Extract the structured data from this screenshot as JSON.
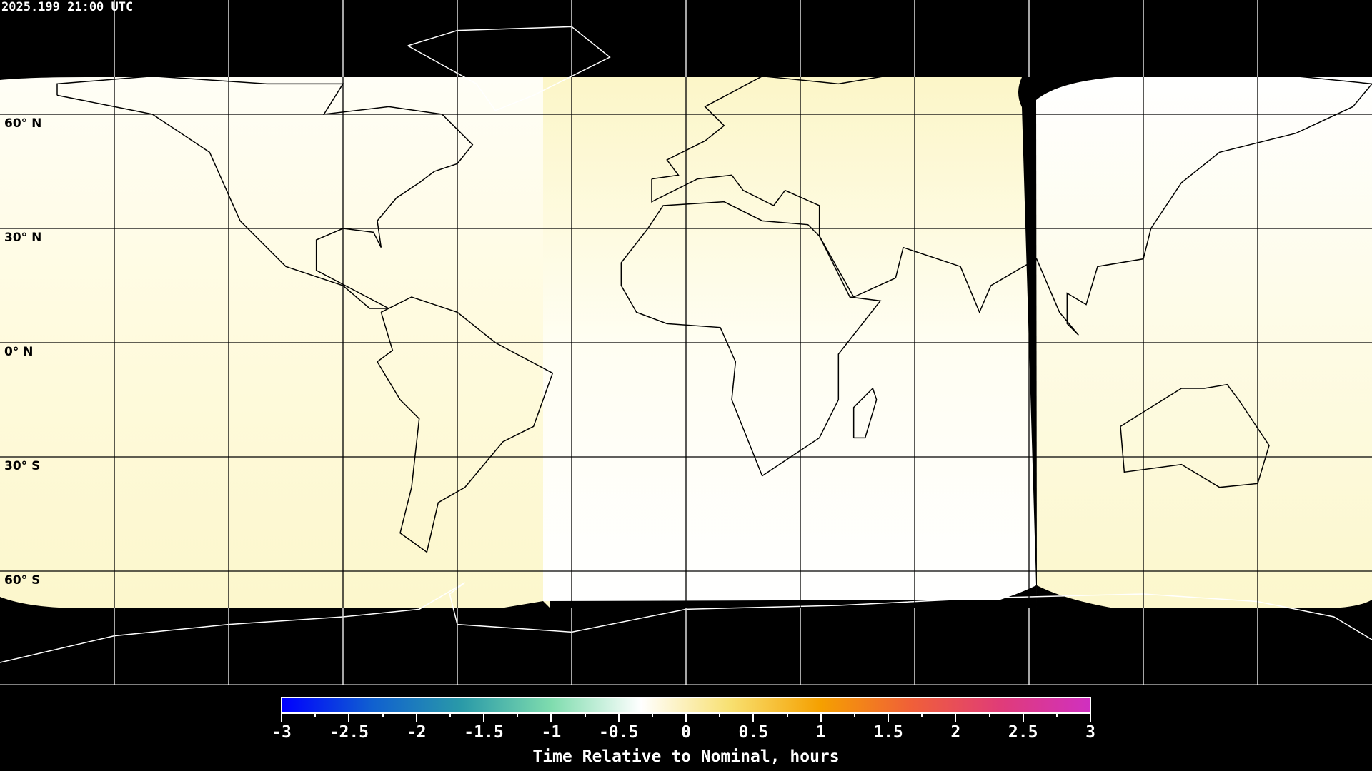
{
  "timestamp": "2025.199 21:00 UTC",
  "latitude_labels": [
    "60° N",
    "30° N",
    "0° N",
    "30° S",
    "60° S"
  ],
  "colorbar": {
    "title": "Time Relative to Nominal, hours",
    "ticks": [
      "-3",
      "-2.5",
      "-2",
      "-1.5",
      "-1",
      "-0.5",
      "0",
      "0.5",
      "1",
      "1.5",
      "2",
      "2.5",
      "3"
    ],
    "range": [
      -3,
      3
    ],
    "colors": [
      "#0000ff",
      "#1060d0",
      "#2a9aa8",
      "#7fdcae",
      "#ffffff",
      "#f8e070",
      "#f5a000",
      "#f06038",
      "#e03c78",
      "#d030c0"
    ]
  },
  "colors": {
    "background": "#000000",
    "coverage_light": "#fffdf0",
    "coverage_yellow": "#fcf6c8",
    "grid": "#000000",
    "coast": "#000000"
  }
}
